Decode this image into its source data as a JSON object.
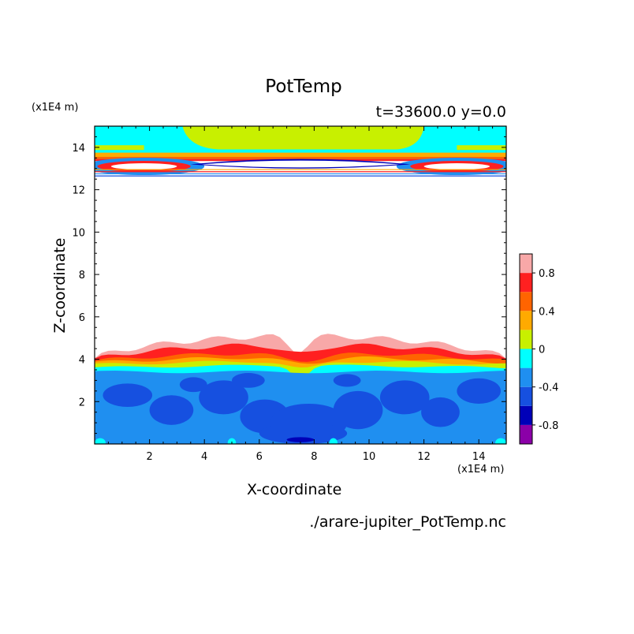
{
  "chart_data": {
    "type": "heatmap",
    "title": "PotTemp",
    "info": "t=33600.0 y=0.0",
    "xlabel": "X-coordinate",
    "ylabel": "Z-coordinate",
    "x_unit": "(x1E4 m)",
    "y_unit": "(x1E4 m)",
    "footer": "./arare-jupiter_PotTemp.nc",
    "xlim": [
      0,
      15
    ],
    "ylim": [
      0,
      15
    ],
    "x_ticks": [
      "2",
      "4",
      "6",
      "8",
      "10",
      "12",
      "14"
    ],
    "y_ticks": [
      "2",
      "4",
      "6",
      "8",
      "10",
      "12",
      "14"
    ],
    "colorbar": {
      "levels": [
        -1.0,
        -0.8,
        -0.6,
        -0.4,
        -0.2,
        0.0,
        0.2,
        0.4,
        0.6,
        0.8,
        1.0
      ],
      "colors": [
        "#8b00a8",
        "#0000b8",
        "#1650e0",
        "#1f8ff0",
        "#00ffff",
        "#c8f000",
        "#ffaa00",
        "#ff6400",
        "#ff2020",
        "#f8a8a8"
      ],
      "tick_labels": [
        "-0.8",
        "-0.4",
        "0",
        "0.4",
        "0.8"
      ]
    },
    "regions_note": "",
    "bottom_band": [
      {
        "level": "1.0",
        "x": [
          0,
          0.5,
          1,
          1.5,
          2,
          2.5,
          3,
          3.5,
          4,
          4.5,
          5,
          5.5,
          6,
          6.5,
          7,
          7.5,
          8,
          8.5,
          9,
          9.5,
          10,
          10.5,
          11,
          11.5,
          12,
          12.5,
          13,
          13.5,
          14,
          14.5,
          15
        ],
        "z": [
          4.0,
          4.1,
          4.3,
          4.5,
          4.8,
          4.9,
          5.0,
          4.8,
          5.0,
          5.1,
          5.1,
          4.9,
          5.0,
          5.1,
          4.6,
          4.3,
          4.8,
          5.0,
          5.1,
          5.0,
          5.1,
          5.0,
          4.8,
          4.9,
          5.1,
          5.0,
          4.9,
          4.7,
          4.3,
          4.1,
          4.0
        ]
      }
    ]
  }
}
